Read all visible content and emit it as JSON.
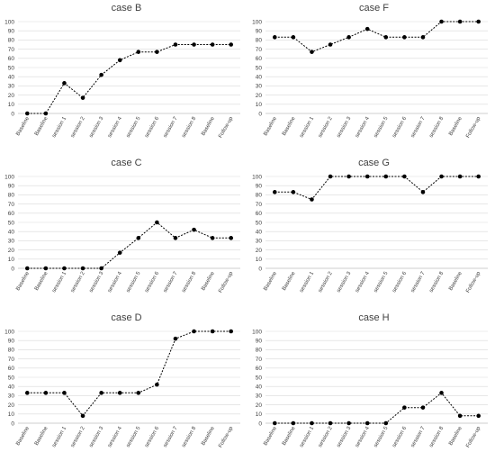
{
  "chart_data": [
    {
      "type": "line",
      "title": "case B",
      "categories": [
        "Baseline",
        "Baseline",
        "session 1",
        "session 2",
        "session 3",
        "session 4",
        "session 5",
        "session 6",
        "session 7",
        "session 8",
        "Baseline",
        "Follow-up"
      ],
      "values": [
        0,
        0,
        33,
        17,
        42,
        58,
        67,
        67,
        75,
        75,
        75,
        75
      ],
      "ylim": [
        0,
        100
      ],
      "yticks": [
        0,
        10,
        20,
        30,
        40,
        50,
        60,
        70,
        80,
        90,
        100
      ],
      "grid": false,
      "legend": "none"
    },
    {
      "type": "line",
      "title": "case F",
      "categories": [
        "Baseline",
        "Baseline",
        "session 1",
        "session 2",
        "session 3",
        "session 4",
        "session 5",
        "session 6",
        "session 7",
        "session 8",
        "Baseline",
        "Follow-up"
      ],
      "values": [
        83,
        83,
        67,
        75,
        83,
        92,
        83,
        83,
        83,
        100,
        100,
        100
      ],
      "ylim": [
        0,
        100
      ],
      "yticks": [
        0,
        10,
        20,
        30,
        40,
        50,
        60,
        70,
        80,
        90,
        100
      ],
      "grid": false,
      "legend": "none"
    },
    {
      "type": "line",
      "title": "case C",
      "categories": [
        "Baseline",
        "Baseline",
        "session 1",
        "session 2",
        "session 3",
        "session 4",
        "session 5",
        "session 6",
        "session 7",
        "session 8",
        "Baseline",
        "Follow-up"
      ],
      "values": [
        0,
        0,
        0,
        0,
        0,
        17,
        33,
        50,
        33,
        42,
        33,
        33
      ],
      "ylim": [
        0,
        100
      ],
      "yticks": [
        0,
        10,
        20,
        30,
        40,
        50,
        60,
        70,
        80,
        90,
        100
      ],
      "grid": false,
      "legend": "none"
    },
    {
      "type": "line",
      "title": "case G",
      "categories": [
        "Baseline",
        "Baseline",
        "session 1",
        "session 2",
        "session 3",
        "session 4",
        "session 5",
        "session 6",
        "session 7",
        "session 8",
        "Baseline",
        "Follow-up"
      ],
      "values": [
        83,
        83,
        75,
        100,
        100,
        100,
        100,
        100,
        83,
        100,
        100,
        100
      ],
      "ylim": [
        0,
        100
      ],
      "yticks": [
        0,
        10,
        20,
        30,
        40,
        50,
        60,
        70,
        80,
        90,
        100
      ],
      "grid": false,
      "legend": "none"
    },
    {
      "type": "line",
      "title": "case D",
      "categories": [
        "Baseline",
        "Baseline",
        "session 1",
        "session 2",
        "session 3",
        "session 4",
        "session 5",
        "session 6",
        "session 7",
        "session 8",
        "Baseline",
        "Follow-up"
      ],
      "values": [
        33,
        33,
        33,
        8,
        33,
        33,
        33,
        42,
        92,
        100,
        100,
        100
      ],
      "ylim": [
        0,
        100
      ],
      "yticks": [
        0,
        10,
        20,
        30,
        40,
        50,
        60,
        70,
        80,
        90,
        100
      ],
      "grid": false,
      "legend": "none"
    },
    {
      "type": "line",
      "title": "case H",
      "categories": [
        "Baseline",
        "Baseline",
        "session 1",
        "session 2",
        "session 3",
        "session 4",
        "session 5",
        "session 6",
        "session 7",
        "session 8",
        "Baseline",
        "Follow-up"
      ],
      "values": [
        0,
        0,
        0,
        0,
        0,
        0,
        0,
        17,
        17,
        33,
        8,
        8
      ],
      "ylim": [
        0,
        100
      ],
      "yticks": [
        0,
        10,
        20,
        30,
        40,
        50,
        60,
        70,
        80,
        90,
        100
      ],
      "grid": false,
      "legend": "none"
    }
  ]
}
